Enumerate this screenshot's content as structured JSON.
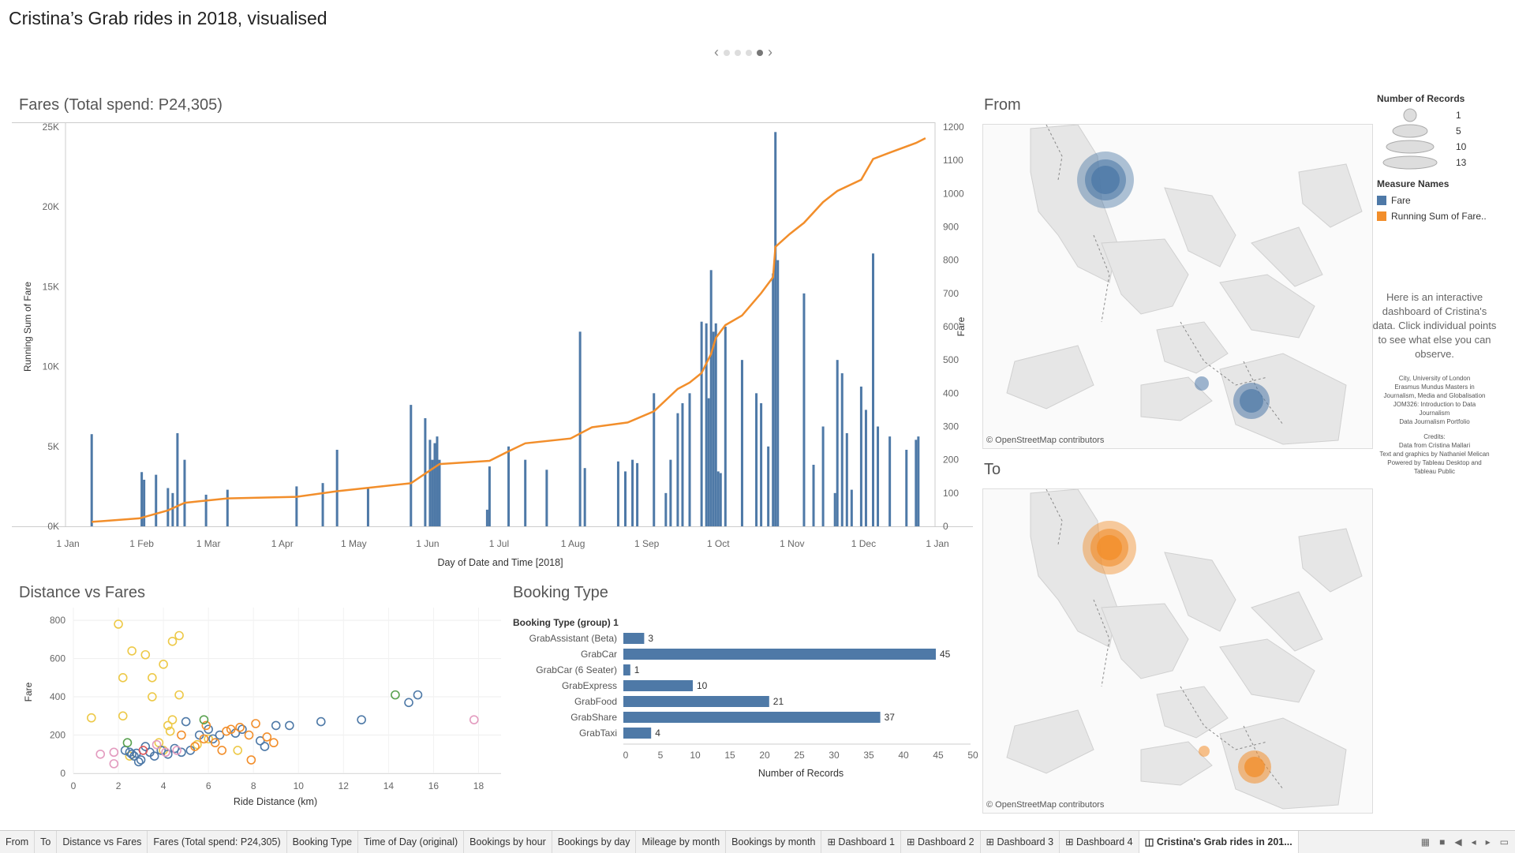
{
  "dashboard_title": "Cristina’s Grab rides in 2018, visualised",
  "nav": {
    "prev": "‹",
    "next": "›"
  },
  "fares": {
    "title": "Fares (Total spend: P24,305)",
    "left_axis_label": "Running Sum of Fare",
    "right_axis_label": "Fare",
    "x_axis_label": "Day of Date and Time [2018]",
    "left_ticks": [
      "0K",
      "5K",
      "10K",
      "15K",
      "20K",
      "25K"
    ],
    "right_ticks": [
      "0",
      "100",
      "200",
      "300",
      "400",
      "500",
      "600",
      "700",
      "800",
      "900",
      "1000",
      "1100",
      "1200"
    ],
    "x_ticks": [
      "1 Jan",
      "1 Feb",
      "1 Mar",
      "1 Apr",
      "1 May",
      "1 Jun",
      "1 Jul",
      "1 Aug",
      "1 Sep",
      "1 Oct",
      "1 Nov",
      "1 Dec",
      "1 Jan"
    ]
  },
  "scatter": {
    "title": "Distance vs Fares",
    "x_axis_label": "Ride Distance (km)",
    "y_axis_label": "Fare",
    "x_ticks": [
      "0",
      "2",
      "4",
      "6",
      "8",
      "10",
      "12",
      "14",
      "16",
      "18"
    ],
    "y_ticks": [
      "0",
      "200",
      "400",
      "600",
      "800"
    ]
  },
  "booking": {
    "title": "Booking Type",
    "group_header": "Booking Type (group) 1",
    "x_axis_label": "Number of Records",
    "x_ticks": [
      "0",
      "5",
      "10",
      "15",
      "20",
      "25",
      "30",
      "35",
      "40",
      "45",
      "50"
    ]
  },
  "maps": {
    "from_title": "From",
    "to_title": "To",
    "attribution": "© OpenStreetMap contributors"
  },
  "legend": {
    "size_title": "Number of Records",
    "sizes": [
      "1",
      "5",
      "10",
      "13"
    ],
    "measure_title": "Measure Names",
    "measures": [
      {
        "label": "Fare",
        "color": "#4e79a7"
      },
      {
        "label": "Running Sum of Fare..",
        "color": "#f28e2b"
      }
    ]
  },
  "info_text": "Here is an interactive dashboard of Cristina's data. Click individual points to see what else you can observe.",
  "credits": {
    "lines": [
      "City, University of London",
      "Erasmus Mundus Masters in",
      "Journalism, Media and Globalisation",
      "JOM326: Introduction to Data",
      "Journalism",
      "Data Journalism Portfolio",
      "",
      "Credits:",
      "Data from Cristina Mallari",
      "Text and graphics by Nathaniel Melican",
      "Powered by Tableau Desktop and",
      "Tableau Public"
    ]
  },
  "tabs": [
    "From",
    "To",
    "Distance vs Fares",
    "Fares (Total spend: P24,305)",
    "Booking Type",
    "Time of Day (original)",
    "Bookings by hour",
    "Bookings by day",
    "Mileage by month",
    "Bookings by month",
    "⊞ Dashboard 1",
    "⊞ Dashboard 2",
    "⊞ Dashboard 3",
    "⊞ Dashboard 4",
    "◫ Cristina's Grab rides in 201..."
  ],
  "active_tab": 14,
  "colors": {
    "fare": "#4e79a7",
    "running": "#f28e2b",
    "text": "#333333"
  },
  "chart_data": [
    {
      "type": "bar+line",
      "title": "Fares (Total spend: P24,305)",
      "xlabel": "Day of Date and Time [2018]",
      "ylabel_left": "Running Sum of Fare",
      "ylabel_right": "Fare",
      "ylim_left": [
        0,
        25000
      ],
      "ylim_right": [
        0,
        1200
      ],
      "x_range": [
        "2018-01-01",
        "2019-01-01"
      ],
      "series": [
        {
          "name": "Fare",
          "kind": "bar",
          "points": [
            [
              "2018-01-12",
              277
            ],
            [
              "2018-02-02",
              163
            ],
            [
              "2018-02-03",
              140
            ],
            [
              "2018-02-08",
              155
            ],
            [
              "2018-02-13",
              115
            ],
            [
              "2018-02-15",
              100
            ],
            [
              "2018-02-17",
              280
            ],
            [
              "2018-02-20",
              200
            ],
            [
              "2018-03-01",
              95
            ],
            [
              "2018-03-10",
              110
            ],
            [
              "2018-04-08",
              120
            ],
            [
              "2018-04-19",
              130
            ],
            [
              "2018-04-25",
              230
            ],
            [
              "2018-05-08",
              115
            ],
            [
              "2018-05-26",
              365
            ],
            [
              "2018-06-01",
              325
            ],
            [
              "2018-06-03",
              260
            ],
            [
              "2018-06-04",
              200
            ],
            [
              "2018-06-05",
              250
            ],
            [
              "2018-06-06",
              270
            ],
            [
              "2018-06-07",
              200
            ],
            [
              "2018-06-27",
              50
            ],
            [
              "2018-06-28",
              180
            ],
            [
              "2018-07-06",
              240
            ],
            [
              "2018-07-13",
              200
            ],
            [
              "2018-07-22",
              170
            ],
            [
              "2018-08-05",
              585
            ],
            [
              "2018-08-07",
              175
            ],
            [
              "2018-08-21",
              195
            ],
            [
              "2018-08-24",
              165
            ],
            [
              "2018-08-27",
              200
            ],
            [
              "2018-08-29",
              190
            ],
            [
              "2018-09-05",
              400
            ],
            [
              "2018-09-10",
              100
            ],
            [
              "2018-09-12",
              200
            ],
            [
              "2018-09-15",
              340
            ],
            [
              "2018-09-17",
              370
            ],
            [
              "2018-09-20",
              400
            ],
            [
              "2018-09-25",
              615
            ],
            [
              "2018-09-27",
              610
            ],
            [
              "2018-09-28",
              385
            ],
            [
              "2018-09-29",
              770
            ],
            [
              "2018-09-30",
              585
            ],
            [
              "2018-10-01",
              610
            ],
            [
              "2018-10-02",
              165
            ],
            [
              "2018-10-03",
              160
            ],
            [
              "2018-10-05",
              600
            ],
            [
              "2018-10-12",
              500
            ],
            [
              "2018-10-18",
              400
            ],
            [
              "2018-10-20",
              370
            ],
            [
              "2018-10-23",
              240
            ],
            [
              "2018-10-25",
              760
            ],
            [
              "2018-10-26",
              1185
            ],
            [
              "2018-10-27",
              800
            ],
            [
              "2018-11-07",
              700
            ],
            [
              "2018-11-11",
              185
            ],
            [
              "2018-11-15",
              300
            ],
            [
              "2018-11-20",
              100
            ],
            [
              "2018-11-21",
              500
            ],
            [
              "2018-11-23",
              460
            ],
            [
              "2018-11-25",
              280
            ],
            [
              "2018-11-27",
              110
            ],
            [
              "2018-12-01",
              420
            ],
            [
              "2018-12-03",
              350
            ],
            [
              "2018-12-06",
              820
            ],
            [
              "2018-12-08",
              300
            ],
            [
              "2018-12-13",
              270
            ],
            [
              "2018-12-20",
              230
            ],
            [
              "2018-12-24",
              260
            ],
            [
              "2018-12-25",
              270
            ]
          ]
        },
        {
          "name": "Running Sum of Fare..",
          "kind": "line",
          "axis": "left",
          "points": [
            [
              "2018-01-12",
              277
            ],
            [
              "2018-02-01",
              500
            ],
            [
              "2018-02-13",
              1000
            ],
            [
              "2018-02-20",
              1470
            ],
            [
              "2018-03-10",
              1750
            ],
            [
              "2018-04-08",
              1850
            ],
            [
              "2018-04-25",
              2200
            ],
            [
              "2018-05-26",
              2700
            ],
            [
              "2018-06-02",
              3400
            ],
            [
              "2018-06-07",
              3900
            ],
            [
              "2018-06-28",
              4100
            ],
            [
              "2018-07-06",
              4700
            ],
            [
              "2018-07-13",
              5200
            ],
            [
              "2018-08-01",
              5500
            ],
            [
              "2018-08-10",
              6200
            ],
            [
              "2018-08-25",
              6500
            ],
            [
              "2018-09-05",
              7200
            ],
            [
              "2018-09-15",
              8600
            ],
            [
              "2018-09-20",
              9000
            ],
            [
              "2018-09-25",
              9600
            ],
            [
              "2018-09-29",
              10800
            ],
            [
              "2018-10-01",
              11800
            ],
            [
              "2018-10-05",
              12600
            ],
            [
              "2018-10-12",
              13200
            ],
            [
              "2018-10-20",
              14600
            ],
            [
              "2018-10-25",
              15600
            ],
            [
              "2018-10-26",
              17500
            ],
            [
              "2018-11-01",
              18300
            ],
            [
              "2018-11-07",
              19000
            ],
            [
              "2018-11-15",
              20300
            ],
            [
              "2018-11-21",
              21000
            ],
            [
              "2018-12-01",
              21700
            ],
            [
              "2018-12-06",
              23000
            ],
            [
              "2018-12-13",
              23400
            ],
            [
              "2018-12-24",
              24000
            ],
            [
              "2018-12-28",
              24305
            ]
          ]
        }
      ]
    },
    {
      "type": "scatter",
      "title": "Distance vs Fares",
      "xlabel": "Ride Distance (km)",
      "ylabel": "Fare",
      "xlim": [
        0,
        19
      ],
      "ylim": [
        0,
        850
      ],
      "groups": [
        {
          "color": "#edc948",
          "points": [
            [
              0.8,
              290
            ],
            [
              2.0,
              780
            ],
            [
              2.2,
              300
            ],
            [
              2.2,
              500
            ],
            [
              2.6,
              640
            ],
            [
              3.2,
              620
            ],
            [
              3.5,
              400
            ],
            [
              3.5,
              500
            ],
            [
              4.0,
              570
            ],
            [
              4.4,
              690
            ],
            [
              4.7,
              720
            ],
            [
              4.7,
              410
            ],
            [
              4.2,
              250
            ],
            [
              4.4,
              280
            ],
            [
              4.3,
              220
            ],
            [
              3.8,
              160
            ],
            [
              4.0,
              120
            ],
            [
              5.5,
              150
            ],
            [
              6.0,
              180
            ],
            [
              7.3,
              120
            ],
            [
              2.5,
              90
            ]
          ]
        },
        {
          "color": "#4e79a7",
          "points": [
            [
              2.3,
              120
            ],
            [
              2.5,
              110
            ],
            [
              2.6,
              100
            ],
            [
              2.7,
              90
            ],
            [
              2.8,
              105
            ],
            [
              3.0,
              70
            ],
            [
              3.2,
              140
            ],
            [
              3.4,
              110
            ],
            [
              3.6,
              90
            ],
            [
              3.9,
              120
            ],
            [
              4.2,
              100
            ],
            [
              4.5,
              130
            ],
            [
              4.8,
              110
            ],
            [
              5.2,
              120
            ],
            [
              5.6,
              200
            ],
            [
              6.0,
              230
            ],
            [
              6.2,
              180
            ],
            [
              6.5,
              200
            ],
            [
              7.2,
              210
            ],
            [
              7.5,
              230
            ],
            [
              8.3,
              170
            ],
            [
              8.5,
              140
            ],
            [
              9.0,
              250
            ],
            [
              9.6,
              250
            ],
            [
              11.0,
              270
            ],
            [
              12.8,
              280
            ],
            [
              14.9,
              370
            ],
            [
              15.3,
              410
            ],
            [
              5.0,
              270
            ],
            [
              2.9,
              60
            ]
          ]
        },
        {
          "color": "#f28e2b",
          "points": [
            [
              4.8,
              200
            ],
            [
              5.4,
              140
            ],
            [
              5.8,
              180
            ],
            [
              6.3,
              160
            ],
            [
              6.8,
              220
            ],
            [
              7.0,
              230
            ],
            [
              7.4,
              240
            ],
            [
              7.8,
              200
            ],
            [
              8.1,
              260
            ],
            [
              8.6,
              190
            ],
            [
              6.6,
              120
            ],
            [
              5.9,
              250
            ],
            [
              7.9,
              70
            ],
            [
              8.9,
              160
            ]
          ]
        },
        {
          "color": "#59a14f",
          "points": [
            [
              2.4,
              160
            ],
            [
              5.8,
              280
            ],
            [
              14.3,
              410
            ]
          ]
        },
        {
          "color": "#e15759",
          "points": [
            [
              3.1,
              120
            ]
          ]
        },
        {
          "color": "#e39bbf",
          "points": [
            [
              1.2,
              100
            ],
            [
              1.8,
              110
            ],
            [
              3.7,
              150
            ],
            [
              4.1,
              110
            ],
            [
              4.6,
              120
            ],
            [
              17.8,
              280
            ],
            [
              1.8,
              50
            ]
          ]
        }
      ]
    },
    {
      "type": "bar",
      "title": "Booking Type",
      "ylabel": "Booking Type (group) 1",
      "xlabel": "Number of Records",
      "xlim": [
        0,
        50
      ],
      "categories": [
        "GrabAssistant (Beta)",
        "GrabCar",
        "GrabCar (6 Seater)",
        "GrabExpress",
        "GrabFood",
        "GrabShare",
        "GrabTaxi"
      ],
      "values": [
        3,
        45,
        1,
        10,
        21,
        37,
        4
      ]
    }
  ]
}
